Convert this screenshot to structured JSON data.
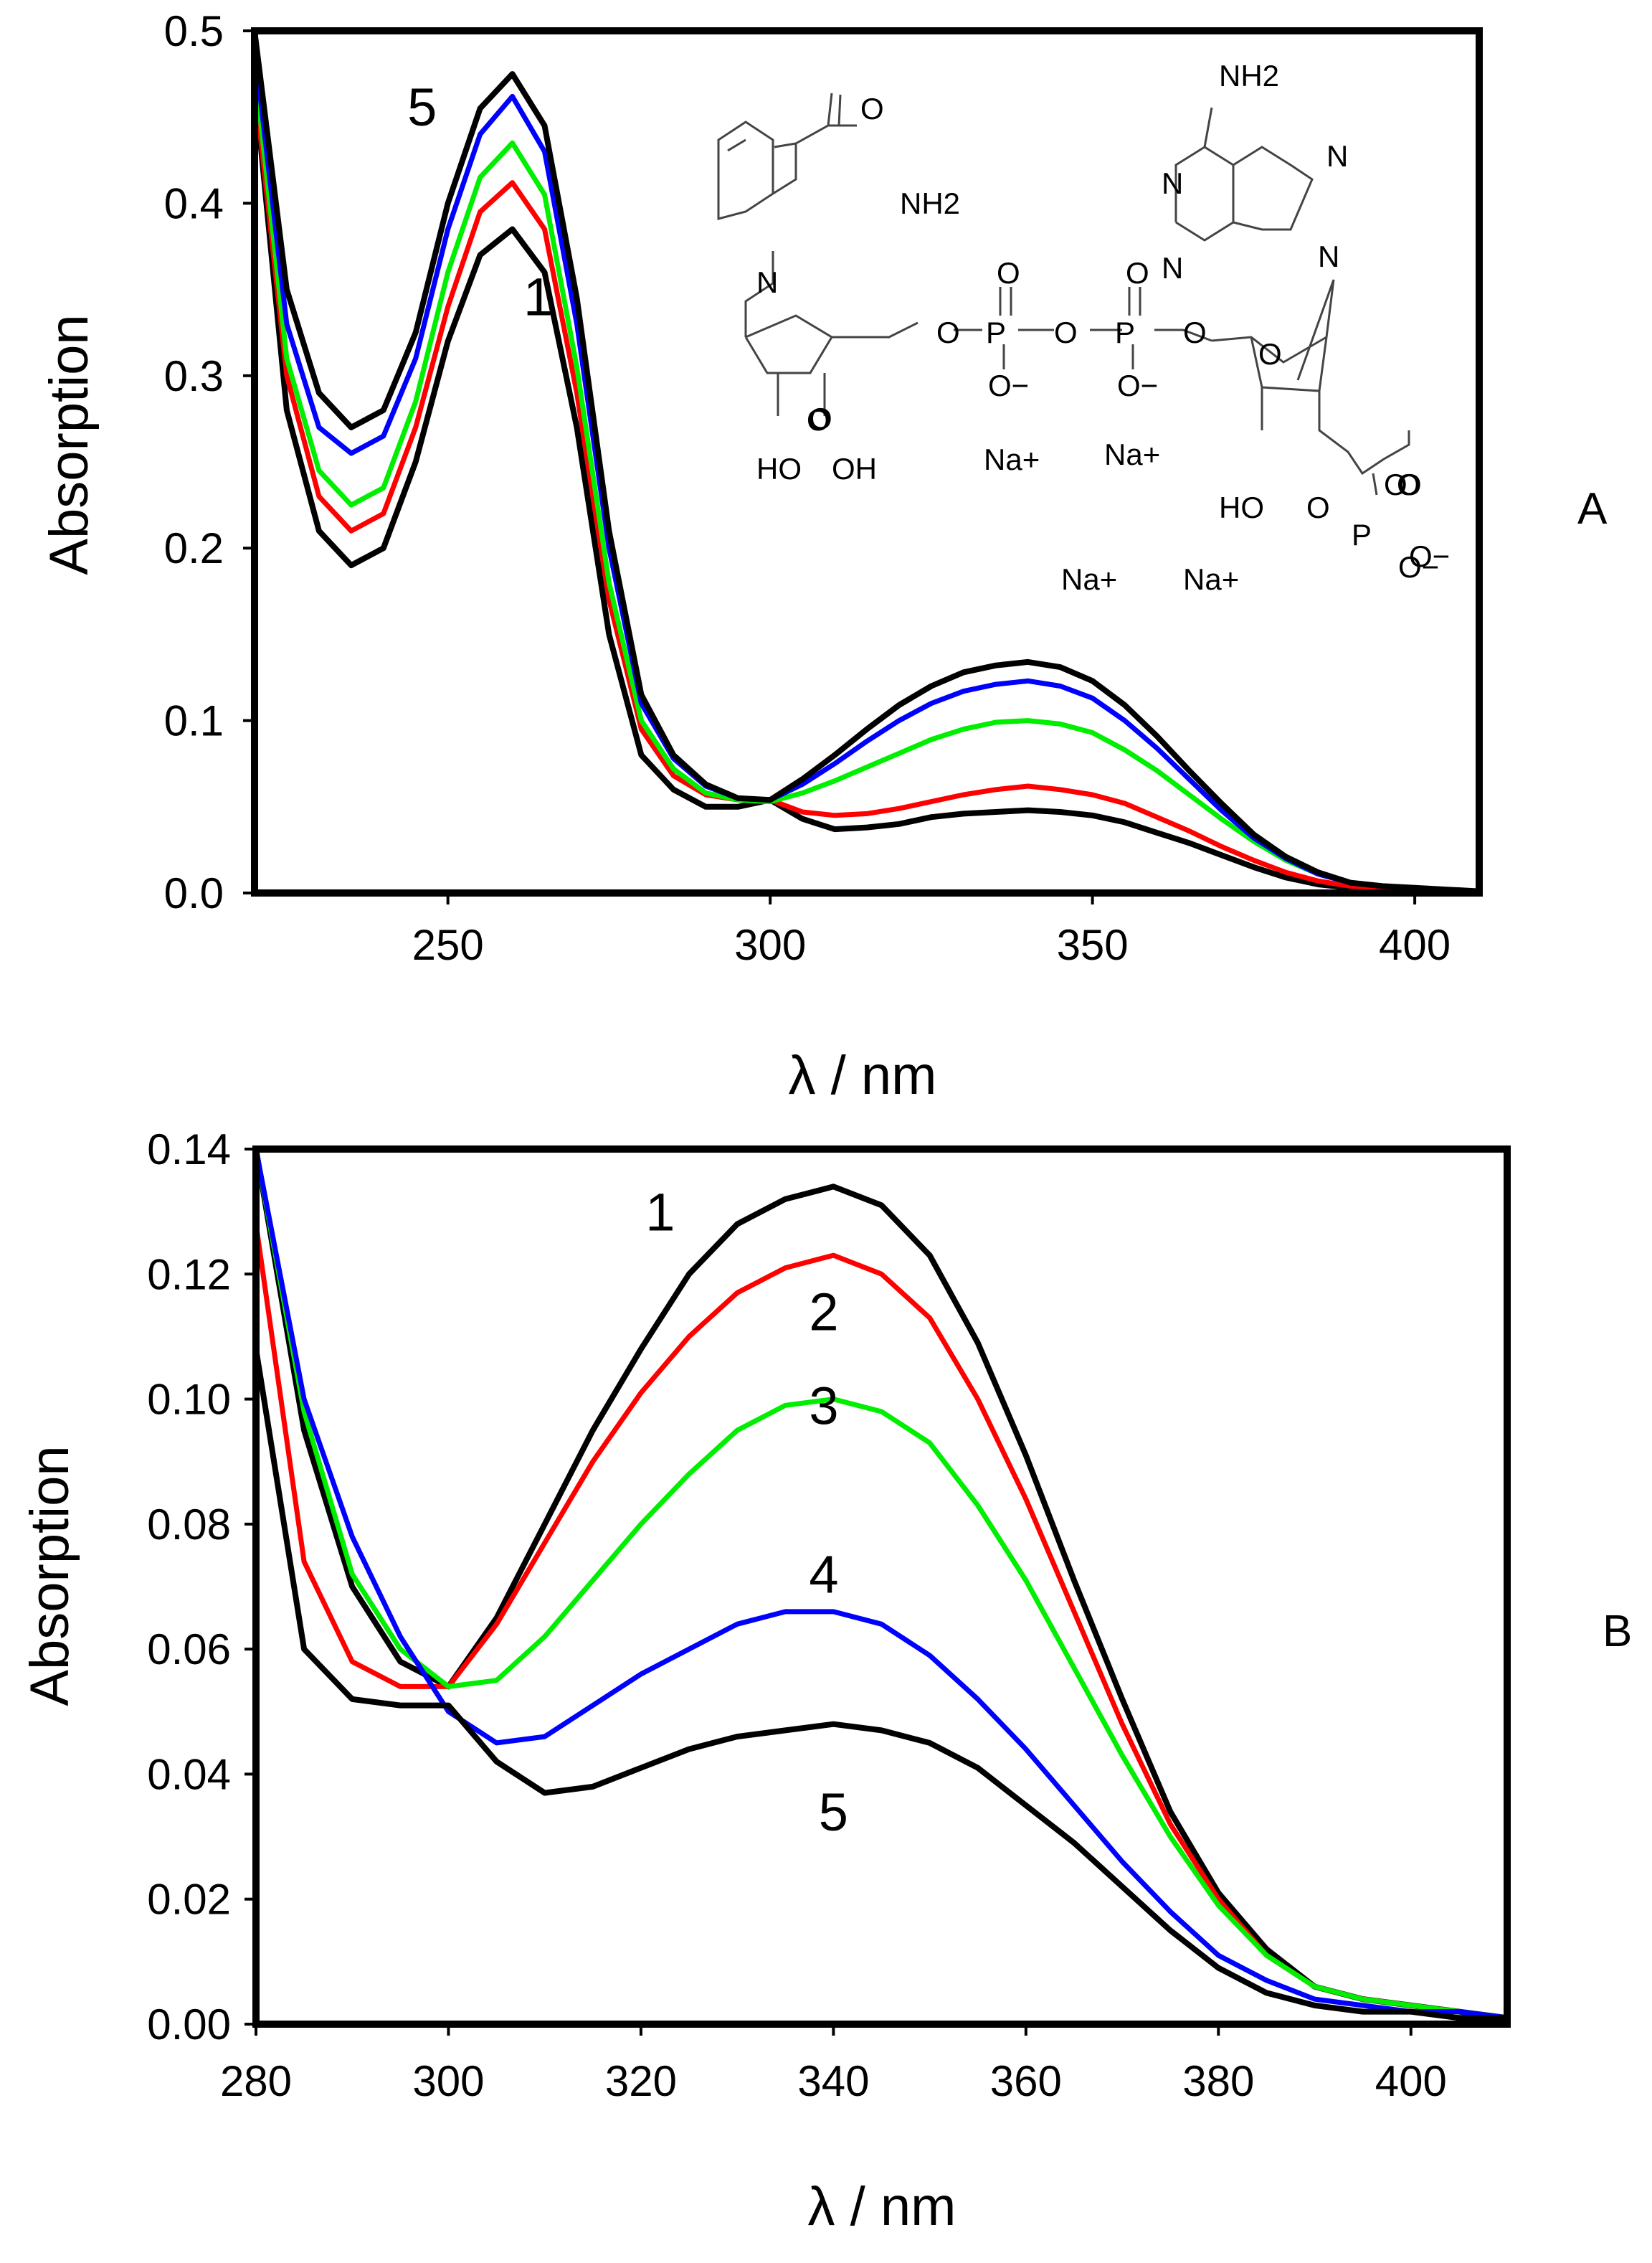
{
  "chart_data": [
    {
      "panel": "A",
      "type": "line",
      "xlabel": "λ / nm",
      "ylabel": "Absorption",
      "xlim": [
        220,
        410
      ],
      "ylim": [
        0,
        0.5
      ],
      "xticks": [
        250,
        300,
        350,
        400
      ],
      "yticks": [
        0.0,
        0.1,
        0.2,
        0.3,
        0.4,
        0.5
      ],
      "ytick_labels": [
        "0.0",
        "0.1",
        "0.2",
        "0.3",
        "0.4",
        "0.5"
      ],
      "grid": false,
      "series": [
        {
          "name": "1",
          "color": "#000000",
          "x": [
            220,
            225,
            230,
            235,
            240,
            245,
            250,
            255,
            260,
            265,
            270,
            275,
            280,
            285,
            290,
            295,
            300,
            305,
            310,
            315,
            320,
            325,
            330,
            335,
            340,
            345,
            350,
            355,
            360,
            365,
            370,
            375,
            380,
            385,
            390,
            395,
            400,
            405,
            410
          ],
          "y": [
            0.47,
            0.28,
            0.21,
            0.19,
            0.2,
            0.25,
            0.32,
            0.37,
            0.385,
            0.36,
            0.27,
            0.15,
            0.08,
            0.06,
            0.05,
            0.05,
            0.054,
            0.043,
            0.037,
            0.038,
            0.04,
            0.044,
            0.046,
            0.047,
            0.048,
            0.047,
            0.045,
            0.041,
            0.035,
            0.029,
            0.022,
            0.015,
            0.009,
            0.005,
            0.003,
            0.002,
            0.002,
            0.001,
            0.001
          ]
        },
        {
          "name": "2",
          "color": "#ff0000",
          "x": [
            220,
            225,
            230,
            235,
            240,
            245,
            250,
            255,
            260,
            265,
            270,
            275,
            280,
            285,
            290,
            295,
            300,
            305,
            310,
            315,
            320,
            325,
            330,
            335,
            340,
            345,
            350,
            355,
            360,
            365,
            370,
            375,
            380,
            385,
            390,
            395,
            400,
            405,
            410
          ],
          "y": [
            0.47,
            0.3,
            0.23,
            0.21,
            0.22,
            0.27,
            0.34,
            0.395,
            0.412,
            0.385,
            0.29,
            0.17,
            0.095,
            0.068,
            0.057,
            0.054,
            0.054,
            0.047,
            0.045,
            0.046,
            0.049,
            0.053,
            0.057,
            0.06,
            0.062,
            0.06,
            0.057,
            0.052,
            0.044,
            0.036,
            0.027,
            0.019,
            0.012,
            0.007,
            0.004,
            0.003,
            0.002,
            0.001,
            0.001
          ]
        },
        {
          "name": "3",
          "color": "#00ee00",
          "x": [
            220,
            225,
            230,
            235,
            240,
            245,
            250,
            255,
            260,
            265,
            270,
            275,
            280,
            285,
            290,
            295,
            300,
            305,
            310,
            315,
            320,
            325,
            330,
            335,
            340,
            345,
            350,
            355,
            360,
            365,
            370,
            375,
            380,
            385,
            390,
            395,
            400,
            405,
            410
          ],
          "y": [
            0.48,
            0.31,
            0.245,
            0.225,
            0.235,
            0.285,
            0.36,
            0.415,
            0.435,
            0.405,
            0.305,
            0.18,
            0.1,
            0.072,
            0.058,
            0.054,
            0.053,
            0.058,
            0.065,
            0.073,
            0.081,
            0.089,
            0.095,
            0.099,
            0.1,
            0.098,
            0.093,
            0.083,
            0.071,
            0.057,
            0.043,
            0.03,
            0.019,
            0.011,
            0.006,
            0.004,
            0.003,
            0.002,
            0.001
          ]
        },
        {
          "name": "4",
          "color": "#0000ff",
          "x": [
            220,
            225,
            230,
            235,
            240,
            245,
            250,
            255,
            260,
            265,
            270,
            275,
            280,
            285,
            290,
            295,
            300,
            305,
            310,
            315,
            320,
            325,
            330,
            335,
            340,
            345,
            350,
            355,
            360,
            365,
            370,
            375,
            380,
            385,
            390,
            395,
            400,
            405,
            410
          ],
          "y": [
            0.49,
            0.33,
            0.27,
            0.255,
            0.265,
            0.31,
            0.385,
            0.44,
            0.462,
            0.43,
            0.33,
            0.2,
            0.11,
            0.078,
            0.062,
            0.055,
            0.054,
            0.063,
            0.075,
            0.088,
            0.1,
            0.11,
            0.117,
            0.121,
            0.123,
            0.12,
            0.113,
            0.1,
            0.084,
            0.066,
            0.048,
            0.032,
            0.02,
            0.011,
            0.006,
            0.004,
            0.003,
            0.002,
            0.001
          ]
        },
        {
          "name": "5",
          "color": "#000000",
          "x": [
            220,
            225,
            230,
            235,
            240,
            245,
            250,
            255,
            260,
            265,
            270,
            275,
            280,
            285,
            290,
            295,
            300,
            305,
            310,
            315,
            320,
            325,
            330,
            335,
            340,
            345,
            350,
            355,
            360,
            365,
            370,
            375,
            380,
            385,
            390,
            395,
            400,
            405,
            410
          ],
          "y": [
            0.5,
            0.35,
            0.29,
            0.27,
            0.28,
            0.325,
            0.4,
            0.455,
            0.475,
            0.445,
            0.345,
            0.21,
            0.115,
            0.08,
            0.063,
            0.055,
            0.054,
            0.066,
            0.08,
            0.095,
            0.109,
            0.12,
            0.128,
            0.132,
            0.134,
            0.131,
            0.123,
            0.109,
            0.091,
            0.071,
            0.052,
            0.034,
            0.021,
            0.012,
            0.006,
            0.004,
            0.003,
            0.002,
            0.001
          ]
        }
      ],
      "annotations": [
        {
          "text": "5",
          "x": 246,
          "y": 0.445
        },
        {
          "text": "1",
          "x": 264,
          "y": 0.335
        }
      ],
      "inset": {
        "description": "NADPH tetrasodium salt structural formula",
        "labels": [
          "O",
          "NH2",
          "NH2",
          "N",
          "N",
          "N",
          "N",
          "N",
          "O",
          "O",
          "O",
          "O",
          "O",
          "O",
          "O",
          "O",
          "O",
          "P",
          "P",
          "O−",
          "O−",
          "O",
          "HO",
          "OH",
          "HO",
          "O",
          "P",
          "O−",
          "O",
          "O−",
          "Na+",
          "Na+",
          "Na+",
          "Na+"
        ]
      },
      "panel_label": "A"
    },
    {
      "panel": "B",
      "type": "line",
      "xlabel": "λ / nm",
      "ylabel": "Absorption",
      "xlim": [
        280,
        410
      ],
      "ylim": [
        0,
        0.14
      ],
      "xticks": [
        280,
        300,
        320,
        340,
        360,
        380,
        400
      ],
      "yticks": [
        0.0,
        0.02,
        0.04,
        0.06,
        0.08,
        0.1,
        0.12,
        0.14
      ],
      "ytick_labels": [
        "0.00",
        "0.02",
        "0.04",
        "0.06",
        "0.08",
        "0.10",
        "0.12",
        "0.14"
      ],
      "grid": false,
      "series": [
        {
          "name": "1",
          "color": "#000000",
          "x": [
            280,
            285,
            290,
            295,
            300,
            305,
            310,
            315,
            320,
            325,
            330,
            335,
            340,
            345,
            350,
            355,
            360,
            365,
            370,
            375,
            380,
            385,
            390,
            395,
            400,
            405,
            410
          ],
          "y": [
            0.14,
            0.095,
            0.07,
            0.058,
            0.054,
            0.065,
            0.08,
            0.095,
            0.108,
            0.12,
            0.128,
            0.132,
            0.134,
            0.131,
            0.123,
            0.109,
            0.091,
            0.071,
            0.052,
            0.034,
            0.021,
            0.012,
            0.006,
            0.004,
            0.003,
            0.002,
            0.001
          ]
        },
        {
          "name": "2",
          "color": "#ff0000",
          "x": [
            280,
            285,
            290,
            295,
            300,
            305,
            310,
            315,
            320,
            325,
            330,
            335,
            340,
            345,
            350,
            355,
            360,
            365,
            370,
            375,
            380,
            385,
            390,
            395,
            400,
            405,
            410
          ],
          "y": [
            0.128,
            0.074,
            0.058,
            0.054,
            0.054,
            0.064,
            0.077,
            0.09,
            0.101,
            0.11,
            0.117,
            0.121,
            0.123,
            0.12,
            0.113,
            0.1,
            0.084,
            0.066,
            0.048,
            0.032,
            0.02,
            0.011,
            0.006,
            0.004,
            0.003,
            0.002,
            0.001
          ]
        },
        {
          "name": "3",
          "color": "#00ee00",
          "x": [
            280,
            285,
            290,
            295,
            300,
            305,
            310,
            315,
            320,
            325,
            330,
            335,
            340,
            345,
            350,
            355,
            360,
            365,
            370,
            375,
            380,
            385,
            390,
            395,
            400,
            405,
            410
          ],
          "y": [
            0.14,
            0.098,
            0.072,
            0.06,
            0.054,
            0.055,
            0.062,
            0.071,
            0.08,
            0.088,
            0.095,
            0.099,
            0.1,
            0.098,
            0.093,
            0.083,
            0.071,
            0.057,
            0.043,
            0.03,
            0.019,
            0.011,
            0.006,
            0.004,
            0.003,
            0.002,
            0.001
          ]
        },
        {
          "name": "4",
          "color": "#0000ff",
          "x": [
            280,
            285,
            290,
            295,
            300,
            305,
            310,
            315,
            320,
            325,
            330,
            335,
            340,
            345,
            350,
            355,
            360,
            365,
            370,
            375,
            380,
            385,
            390,
            395,
            400,
            405,
            410
          ],
          "y": [
            0.14,
            0.1,
            0.078,
            0.062,
            0.05,
            0.045,
            0.046,
            0.051,
            0.056,
            0.06,
            0.064,
            0.066,
            0.066,
            0.064,
            0.059,
            0.052,
            0.044,
            0.035,
            0.026,
            0.018,
            0.011,
            0.007,
            0.004,
            0.003,
            0.002,
            0.002,
            0.001
          ]
        },
        {
          "name": "5",
          "color": "#000000",
          "x": [
            280,
            285,
            290,
            295,
            300,
            305,
            310,
            315,
            320,
            325,
            330,
            335,
            340,
            345,
            350,
            355,
            360,
            365,
            370,
            375,
            380,
            385,
            390,
            395,
            400,
            405,
            410
          ],
          "y": [
            0.108,
            0.06,
            0.052,
            0.051,
            0.051,
            0.042,
            0.037,
            0.038,
            0.041,
            0.044,
            0.046,
            0.047,
            0.048,
            0.047,
            0.045,
            0.041,
            0.035,
            0.029,
            0.022,
            0.015,
            0.009,
            0.005,
            0.003,
            0.002,
            0.002,
            0.001,
            0.001
          ]
        }
      ],
      "annotations": [
        {
          "text": "1",
          "x": 322,
          "y": 0.127
        },
        {
          "text": "2",
          "x": 339,
          "y": 0.111
        },
        {
          "text": "3",
          "x": 339,
          "y": 0.096
        },
        {
          "text": "4",
          "x": 339,
          "y": 0.069
        },
        {
          "text": "5",
          "x": 340,
          "y": 0.031
        }
      ],
      "panel_label": "B"
    }
  ]
}
